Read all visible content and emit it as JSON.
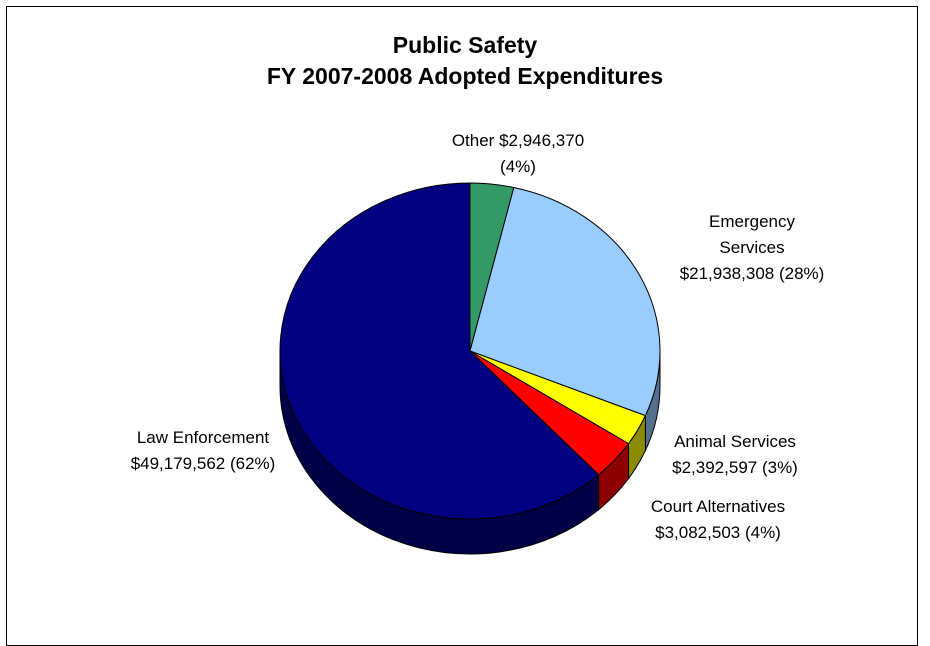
{
  "chart_data": {
    "type": "pie",
    "title": "Public Safety",
    "subtitle": "FY 2007-2008 Adopted Expenditures",
    "slices": [
      {
        "label": "Other",
        "amount": "$2,946,370",
        "pct_label": "(4%)",
        "value": 2946370,
        "color": "#339966"
      },
      {
        "label": "Emergency Services",
        "amount": "$21,938,308",
        "pct_label": "(28%)",
        "value": 21938308,
        "color": "#99ccff"
      },
      {
        "label": "Animal Services",
        "amount": "$2,392,597",
        "pct_label": "(3%)",
        "value": 2392597,
        "color": "#ffff00"
      },
      {
        "label": "Court Alternatives",
        "amount": "$3,082,503",
        "pct_label": "(4%)",
        "value": 3082503,
        "color": "#ff0000"
      },
      {
        "label": "Law Enforcement",
        "amount": "$49,179,562",
        "pct_label": "(62%)",
        "value": 49179562,
        "color": "#000080"
      }
    ],
    "label_lines": {
      "other": [
        "Other  $2,946,370",
        "(4%)"
      ],
      "emergency": [
        "Emergency",
        "Services",
        "$21,938,308 (28%)"
      ],
      "animal": [
        "Animal Services",
        "$2,392,597 (3%)"
      ],
      "court": [
        "Court Alternatives",
        "$3,082,503 (4%)"
      ],
      "law": [
        "Law Enforcement",
        "$49,179,562 (62%)"
      ]
    },
    "legend": "none",
    "grid": false
  }
}
